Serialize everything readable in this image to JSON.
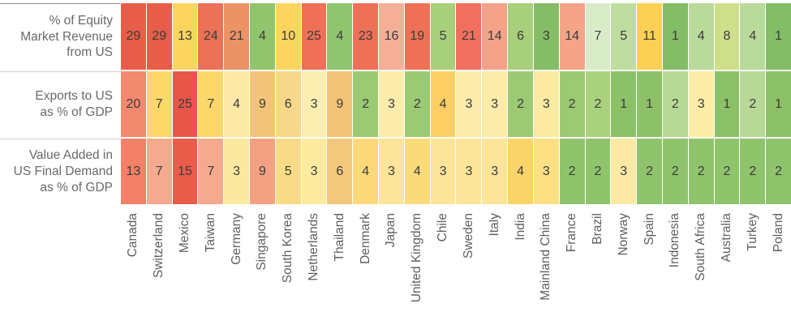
{
  "chart_data": {
    "type": "heatmap",
    "title": "",
    "legend_position": "none",
    "color_scale": {
      "high_exposure": "#e6574a",
      "middle": "#fbd55e",
      "low_exposure": "#83bd66",
      "meaning": "red = high value, yellow = middle, green = low value"
    },
    "columns": [
      "Canada",
      "Switzerland",
      "Mexico",
      "Taiwan",
      "Germany",
      "Singapore",
      "South Korea",
      "Netherlands",
      "Thailand",
      "Denmark",
      "Japan",
      "United Kingdom",
      "Chile",
      "Sweden",
      "Italy",
      "India",
      "Mainland China",
      "France",
      "Brazil",
      "Norway",
      "Spain",
      "Indonesia",
      "South Africa",
      "Australia",
      "Turkey",
      "Poland"
    ],
    "rows": [
      {
        "label": "% of Equity Market Revenue from US",
        "label_lines": [
          "% of Equity",
          "Market Revenue",
          "from US"
        ],
        "values": [
          29,
          29,
          13,
          24,
          21,
          4,
          10,
          25,
          4,
          23,
          16,
          19,
          5,
          21,
          14,
          6,
          3,
          14,
          7,
          5,
          11,
          1,
          4,
          8,
          4,
          1
        ],
        "colors": [
          "#e85d47",
          "#e85d47",
          "#fbd55e",
          "#ed7156",
          "#eb9365",
          "#92c46d",
          "#fbd55e",
          "#ee7157",
          "#90c46e",
          "#ee7157",
          "#f5af98",
          "#ee7157",
          "#a8cf7a",
          "#ef705e",
          "#f5a289",
          "#a8cf7b",
          "#84bd66",
          "#f6a488",
          "#d9ecc8",
          "#bedd9f",
          "#fbd055",
          "#83bd66",
          "#b9da9b",
          "#cede89",
          "#b9da9b",
          "#83bd66"
        ]
      },
      {
        "label": "Exports to US as % of GDP",
        "label_lines": [
          "Exports to US",
          "as % of GDP"
        ],
        "values": [
          20,
          7,
          25,
          7,
          4,
          9,
          6,
          3,
          9,
          2,
          3,
          2,
          4,
          3,
          3,
          2,
          3,
          2,
          2,
          1,
          1,
          2,
          3,
          1,
          2,
          1
        ],
        "colors": [
          "#f28a6e",
          "#fbd869",
          "#e6574a",
          "#fcd76a",
          "#fde9a6",
          "#f3c478",
          "#f7d78a",
          "#fcedb0",
          "#f3c478",
          "#9cc973",
          "#fcecac",
          "#9cc973",
          "#fcce63",
          "#fcebaa",
          "#fcebaa",
          "#9cc973",
          "#fce9a2",
          "#9cc973",
          "#a9d17e",
          "#8cc167",
          "#8cc167",
          "#b8d996",
          "#fceca6",
          "#8cc167",
          "#b8d996",
          "#8cc167"
        ]
      },
      {
        "label": "Value Added in US Final Demand as % of GDP",
        "label_lines": [
          "Value Added in",
          "US Final Demand",
          "as % of GDP"
        ],
        "values": [
          13,
          7,
          15,
          7,
          3,
          9,
          5,
          3,
          6,
          4,
          3,
          4,
          3,
          3,
          3,
          4,
          3,
          2,
          2,
          3,
          2,
          2,
          2,
          2,
          2,
          2
        ],
        "colors": [
          "#f28168",
          "#f5a98e",
          "#e85c49",
          "#f5a98e",
          "#fce9a0",
          "#f4a183",
          "#f8dc85",
          "#fcea9f",
          "#f3c77c",
          "#fbd97a",
          "#fce59a",
          "#fbda7a",
          "#fce59a",
          "#fce59a",
          "#fce59a",
          "#fbd469",
          "#fce083",
          "#8fc46c",
          "#8fc46c",
          "#fbe9a4",
          "#8fc46c",
          "#8fc46c",
          "#8fc46c",
          "#8fc46c",
          "#8fc46c",
          "#8fc46c"
        ]
      }
    ]
  },
  "styles": {
    "row_label_color": "#696969",
    "column_label_color": "#5e5e5e",
    "cell_value_color": "#3b3b3b",
    "divider_color": "#cfcfcf",
    "top_divider_color": "#8f8f8f",
    "background": "#ffffff"
  }
}
